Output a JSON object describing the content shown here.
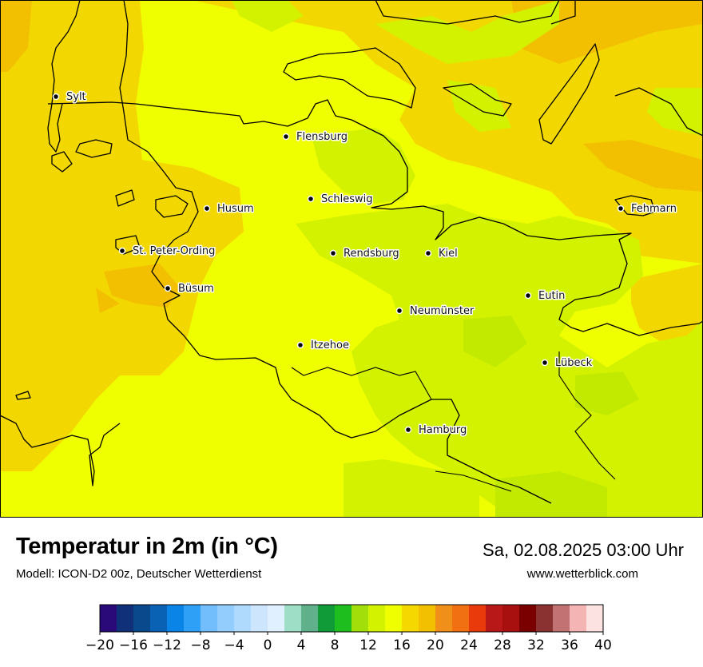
{
  "header": {
    "title": "Temperatur in 2m (in °C)",
    "model": "Modell: ICON-D2 00z, Deutscher Wetterdienst",
    "datetime": "Sa, 02.08.2025 03:00 Uhr",
    "website": "www.wetterblick.com"
  },
  "cities": [
    {
      "name": "Sylt"
    },
    {
      "name": "Flensburg"
    },
    {
      "name": "Schleswig"
    },
    {
      "name": "Husum"
    },
    {
      "name": "Fehmarn"
    },
    {
      "name": "St. Peter-Ording"
    },
    {
      "name": "Rendsburg"
    },
    {
      "name": "Kiel"
    },
    {
      "name": "Büsum"
    },
    {
      "name": "Neumünster"
    },
    {
      "name": "Eutin"
    },
    {
      "name": "Itzehoe"
    },
    {
      "name": "Lübeck"
    },
    {
      "name": "Hamburg"
    }
  ],
  "legend": {
    "ticks": [
      "−20",
      "−16",
      "−12",
      "−8",
      "−4",
      "0",
      "4",
      "8",
      "12",
      "16",
      "20",
      "24",
      "28",
      "32",
      "36",
      "40"
    ],
    "colors": [
      "#2a0a78",
      "#10307a",
      "#0a4a8c",
      "#0a62b4",
      "#0a84e6",
      "#2ea0f5",
      "#72bdfb",
      "#92cdfd",
      "#b0dafd",
      "#cde6fe",
      "#e0f0ff",
      "#9edec6",
      "#60b08c",
      "#109a38",
      "#1ebe1e",
      "#a2de0a",
      "#d2f200",
      "#f0ff00",
      "#f4d800",
      "#f2c000",
      "#f0901a",
      "#f07012",
      "#e83a0a",
      "#b81818",
      "#a81010",
      "#7a0000",
      "#8a3232",
      "#c27272",
      "#f5b4b4",
      "#fde2e2"
    ]
  },
  "palette": {
    "map_yellow": "#f0ff00",
    "map_green": "#d2f200",
    "map_gold": "#f2d800",
    "map_orange": "#f2c000"
  }
}
